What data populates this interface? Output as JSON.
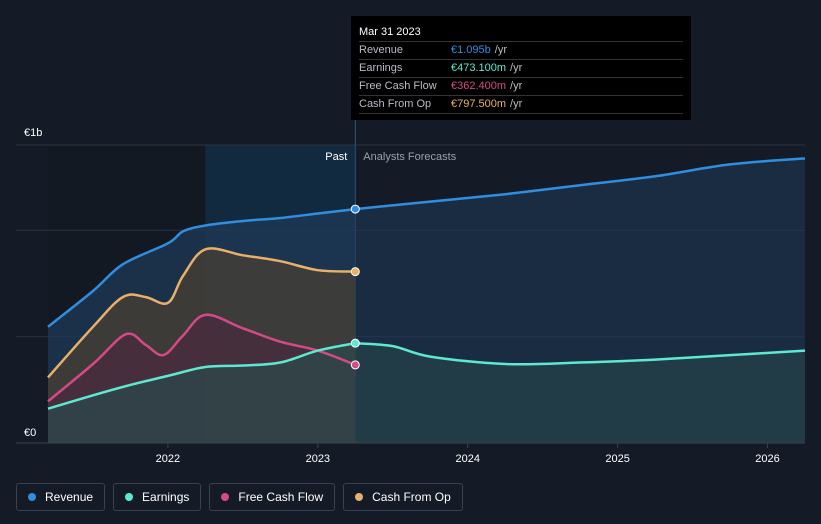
{
  "chart_data": {
    "type": "area",
    "y_axis": {
      "top_label": "€1b",
      "bottom_label": "€0",
      "ylim": [
        0,
        1.0
      ]
    },
    "x_ticks": [
      {
        "label": "2022",
        "x": 2022.0
      },
      {
        "label": "2023",
        "x": 2023.0
      },
      {
        "label": "2024",
        "x": 2024.0
      },
      {
        "label": "2025",
        "x": 2025.0
      },
      {
        "label": "2026",
        "x": 2026.0
      }
    ],
    "x_range": [
      2021.2,
      2026.25
    ],
    "divider_x": 2023.25,
    "past_label": "Past",
    "forecast_label": "Analysts Forecasts",
    "series": [
      {
        "name": "Revenue",
        "color": "#2f8ee0",
        "fill": "#1f3a5a",
        "values": [
          [
            2021.2,
            0.39
          ],
          [
            2021.5,
            0.51
          ],
          [
            2021.7,
            0.6
          ],
          [
            2022.0,
            0.67
          ],
          [
            2022.1,
            0.71
          ],
          [
            2022.25,
            0.73
          ],
          [
            2022.5,
            0.745
          ],
          [
            2022.75,
            0.755
          ],
          [
            2023.0,
            0.77
          ],
          [
            2023.25,
            0.785
          ]
        ],
        "forecast": [
          [
            2023.25,
            0.785
          ],
          [
            2023.75,
            0.81
          ],
          [
            2024.25,
            0.835
          ],
          [
            2024.75,
            0.865
          ],
          [
            2025.25,
            0.895
          ],
          [
            2025.75,
            0.935
          ],
          [
            2026.25,
            0.955
          ]
        ]
      },
      {
        "name": "Earnings",
        "color": "#5ee8d0",
        "fill": "#2a4a4c",
        "values": [
          [
            2021.2,
            0.115
          ],
          [
            2021.5,
            0.16
          ],
          [
            2021.75,
            0.195
          ],
          [
            2022.0,
            0.225
          ],
          [
            2022.25,
            0.255
          ],
          [
            2022.5,
            0.26
          ],
          [
            2022.75,
            0.27
          ],
          [
            2023.0,
            0.31
          ],
          [
            2023.25,
            0.335
          ]
        ],
        "forecast": [
          [
            2023.25,
            0.335
          ],
          [
            2023.5,
            0.325
          ],
          [
            2023.75,
            0.29
          ],
          [
            2024.25,
            0.265
          ],
          [
            2024.75,
            0.27
          ],
          [
            2025.25,
            0.28
          ],
          [
            2025.75,
            0.295
          ],
          [
            2026.25,
            0.31
          ]
        ]
      },
      {
        "name": "Free Cash Flow",
        "color": "#d44a86",
        "fill": "#4a2a3e",
        "values": [
          [
            2021.2,
            0.14
          ],
          [
            2021.5,
            0.265
          ],
          [
            2021.72,
            0.365
          ],
          [
            2021.85,
            0.33
          ],
          [
            2021.97,
            0.295
          ],
          [
            2022.1,
            0.36
          ],
          [
            2022.25,
            0.43
          ],
          [
            2022.5,
            0.385
          ],
          [
            2022.75,
            0.34
          ],
          [
            2023.0,
            0.31
          ],
          [
            2023.25,
            0.262
          ]
        ]
      },
      {
        "name": "Cash From Op",
        "color": "#e8b06a",
        "fill": "#4a4030",
        "values": [
          [
            2021.2,
            0.22
          ],
          [
            2021.5,
            0.39
          ],
          [
            2021.7,
            0.49
          ],
          [
            2021.85,
            0.49
          ],
          [
            2022.0,
            0.47
          ],
          [
            2022.1,
            0.56
          ],
          [
            2022.25,
            0.65
          ],
          [
            2022.5,
            0.63
          ],
          [
            2022.75,
            0.61
          ],
          [
            2023.0,
            0.58
          ],
          [
            2023.25,
            0.575
          ]
        ]
      }
    ]
  },
  "tooltip": {
    "date": "Mar 31 2023",
    "rows": [
      {
        "label": "Revenue",
        "value": "€1.095b",
        "unit": "/yr",
        "color": "#2f8ee0"
      },
      {
        "label": "Earnings",
        "value": "€473.100m",
        "unit": "/yr",
        "color": "#5ee8d0"
      },
      {
        "label": "Free Cash Flow",
        "value": "€362.400m",
        "unit": "/yr",
        "color": "#d44a86"
      },
      {
        "label": "Cash From Op",
        "value": "€797.500m",
        "unit": "/yr",
        "color": "#e8b06a"
      }
    ]
  },
  "legend": [
    {
      "label": "Revenue",
      "color": "#2f8ee0"
    },
    {
      "label": "Earnings",
      "color": "#5ee8d0"
    },
    {
      "label": "Free Cash Flow",
      "color": "#d44a86"
    },
    {
      "label": "Cash From Op",
      "color": "#e8b06a"
    }
  ]
}
